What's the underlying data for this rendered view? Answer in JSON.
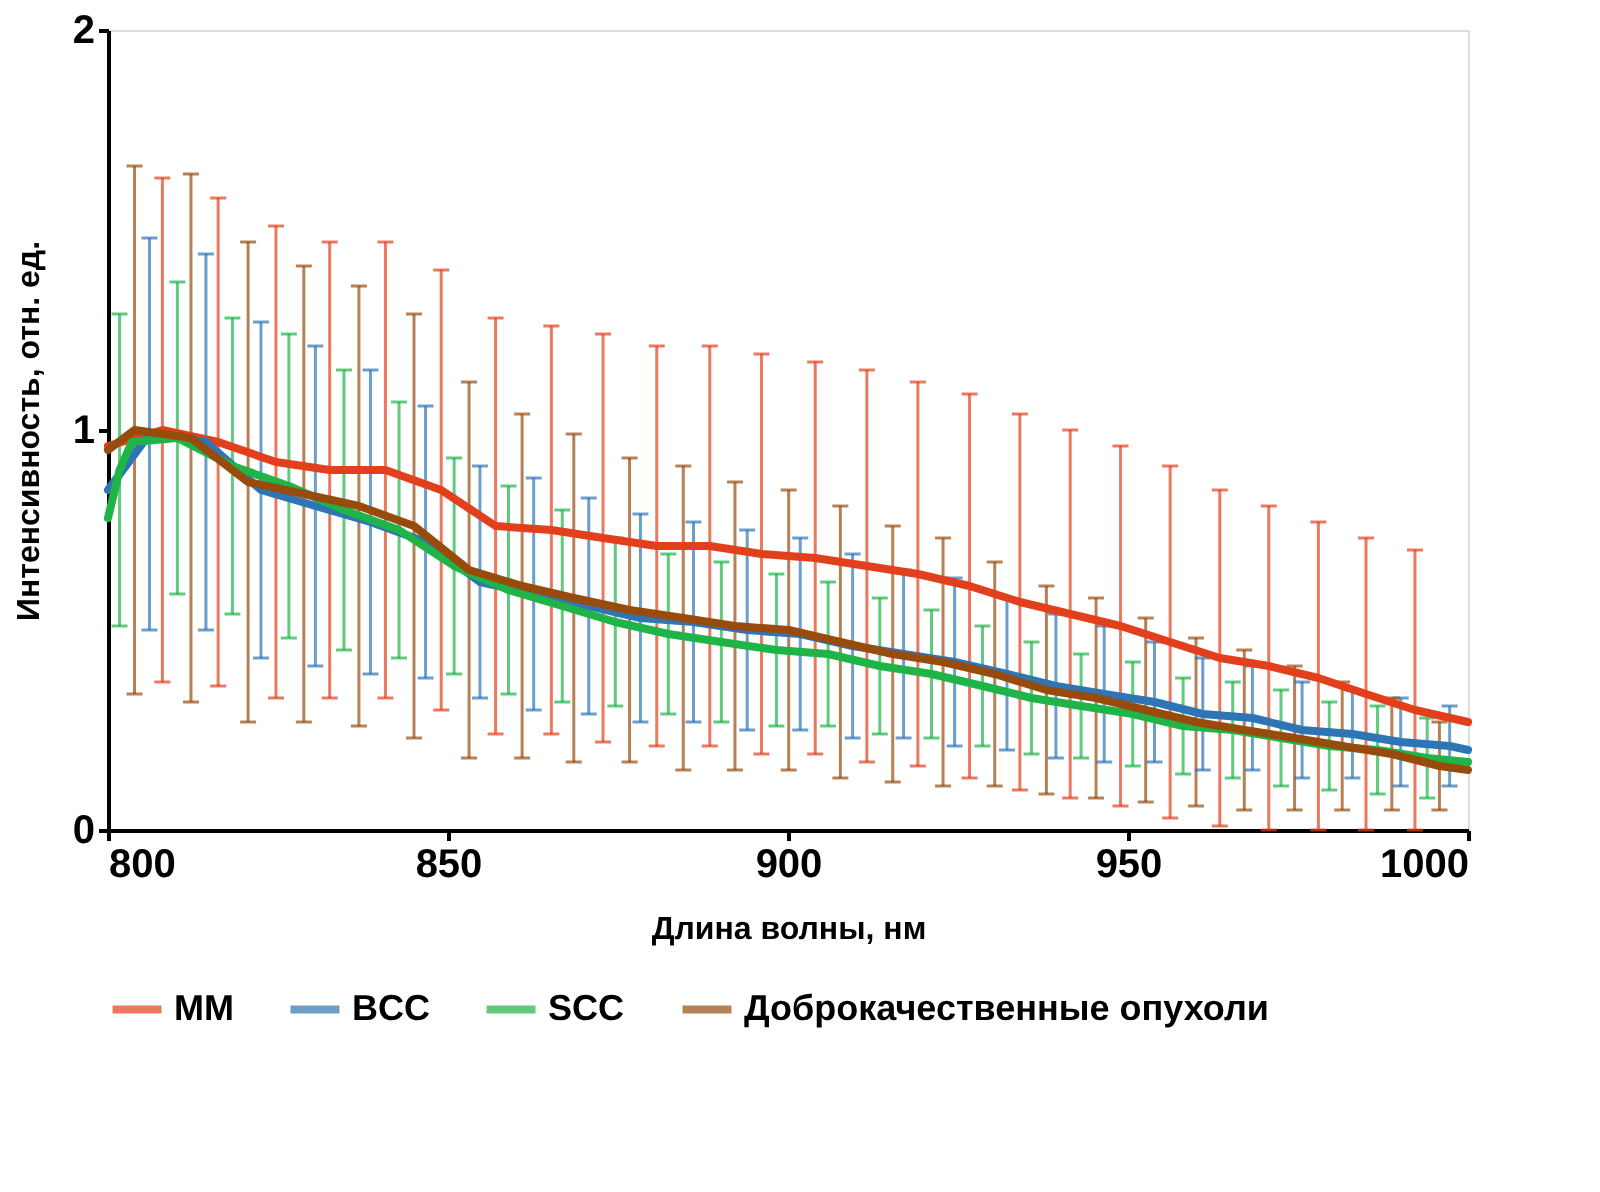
{
  "chart_data": {
    "type": "line",
    "xlabel": "Длина волны, нм",
    "ylabel": "Интенсивность, отн. ед.",
    "xlim": [
      800,
      1000
    ],
    "xticks": [
      800,
      850,
      900,
      950,
      1000
    ],
    "ylim": [
      0,
      2
    ],
    "yticks": [
      0,
      1,
      2
    ],
    "grid": false,
    "legend": "bottom",
    "marker": "none",
    "line_style": "solid",
    "series": [
      {
        "name": "MM",
        "color": "#e2401c",
        "x": [
          800,
          808.0,
          816.2,
          824.7,
          832.6,
          840.8,
          849.0,
          857.0,
          865.2,
          872.8,
          880.7,
          888.5,
          896.1,
          904.0,
          911.6,
          919.1,
          926.7,
          934.1,
          941.5,
          948.9,
          956.2,
          963.5,
          970.7,
          978.0,
          985.0,
          992.2,
          1000
        ],
        "values": [
          0.96,
          1.0,
          0.97,
          0.92,
          0.9,
          0.9,
          0.85,
          0.76,
          0.75,
          0.73,
          0.71,
          0.71,
          0.69,
          0.68,
          0.66,
          0.64,
          0.61,
          0.57,
          0.54,
          0.51,
          0.47,
          0.43,
          0.41,
          0.38,
          0.34,
          0.3,
          0.27
        ],
        "errors": [
          null,
          0.63,
          0.61,
          0.59,
          0.57,
          0.57,
          0.55,
          0.52,
          0.51,
          0.51,
          0.5,
          0.5,
          0.5,
          0.49,
          0.49,
          0.48,
          0.48,
          0.47,
          0.46,
          0.45,
          0.44,
          0.42,
          [
            0,
            0.81
          ],
          [
            0,
            0.77
          ],
          [
            0,
            0.73
          ],
          [
            0,
            0.7
          ],
          null
        ]
      },
      {
        "name": "BCC",
        "color": "#2e75b6",
        "x": [
          800,
          806.1,
          814.4,
          822.5,
          830.5,
          838.6,
          846.7,
          854.7,
          862.6,
          870.7,
          878.3,
          886.1,
          894.0,
          901.8,
          909.5,
          917.0,
          924.5,
          932.2,
          939.4,
          946.5,
          953.9,
          961.0,
          968.3,
          975.6,
          983.0,
          990.1,
          997.3,
          1000
        ],
        "values": [
          0.85,
          0.99,
          0.97,
          0.85,
          0.81,
          0.77,
          0.72,
          0.62,
          0.59,
          0.56,
          0.53,
          0.52,
          0.5,
          0.49,
          0.46,
          0.44,
          0.42,
          0.39,
          0.36,
          0.34,
          0.32,
          0.29,
          0.28,
          0.25,
          0.24,
          0.22,
          0.21,
          0.2
        ],
        "errors": [
          null,
          0.49,
          0.47,
          0.42,
          0.4,
          0.38,
          0.34,
          0.29,
          0.29,
          0.27,
          0.26,
          0.25,
          0.25,
          0.24,
          0.23,
          0.21,
          0.21,
          0.19,
          0.18,
          0.17,
          0.15,
          0.14,
          0.13,
          0.12,
          0.11,
          0.11,
          0.1,
          null
        ]
      },
      {
        "name": "SCC",
        "color": "#1fb447",
        "x": [
          800,
          801.7,
          803.5,
          810.2,
          818.3,
          826.6,
          834.7,
          842.8,
          850.9,
          858.9,
          866.8,
          874.6,
          882.4,
          890.2,
          898.3,
          905.9,
          913.5,
          921.1,
          928.6,
          935.8,
          943.1,
          950.7,
          958.1,
          965.4,
          972.5,
          979.6,
          986.7,
          994.0,
          1000
        ],
        "values": [
          0.78,
          0.9,
          0.97,
          0.98,
          0.91,
          0.86,
          0.8,
          0.75,
          0.66,
          0.6,
          0.56,
          0.52,
          0.49,
          0.47,
          0.45,
          0.44,
          0.41,
          0.39,
          0.36,
          0.33,
          0.31,
          0.29,
          0.26,
          0.25,
          0.23,
          0.21,
          0.2,
          0.18,
          0.17
        ],
        "errors": [
          null,
          0.39,
          null,
          0.39,
          0.37,
          0.38,
          0.35,
          0.32,
          0.27,
          0.26,
          0.24,
          0.21,
          0.2,
          0.2,
          0.19,
          0.18,
          0.17,
          0.16,
          0.15,
          0.14,
          0.13,
          0.13,
          0.12,
          0.12,
          0.12,
          0.11,
          0.11,
          0.1,
          null
        ]
      },
      {
        "name": "Доброкачественные опухоли",
        "color": "#974c0e",
        "x": [
          800,
          803.9,
          812.2,
          820.6,
          828.8,
          836.9,
          845.0,
          853.1,
          860.9,
          868.5,
          876.7,
          884.6,
          892.2,
          900.1,
          907.7,
          915.4,
          922.8,
          930.4,
          938.0,
          945.3,
          952.6,
          960.0,
          967.1,
          974.5,
          981.5,
          988.8,
          995.8,
          1000
        ],
        "values": [
          0.95,
          1.0,
          0.98,
          0.87,
          0.84,
          0.81,
          0.76,
          0.65,
          0.61,
          0.58,
          0.55,
          0.53,
          0.51,
          0.5,
          0.47,
          0.44,
          0.42,
          0.39,
          0.35,
          0.33,
          0.3,
          0.27,
          0.25,
          0.23,
          0.21,
          0.19,
          0.16,
          0.15
        ],
        "errors": [
          null,
          0.66,
          0.66,
          0.6,
          0.57,
          0.55,
          0.53,
          0.47,
          0.43,
          0.41,
          0.38,
          0.38,
          0.36,
          0.35,
          0.34,
          0.32,
          0.31,
          0.28,
          0.26,
          0.25,
          0.23,
          0.21,
          0.2,
          0.18,
          0.16,
          0.14,
          0.11,
          null
        ]
      }
    ]
  }
}
